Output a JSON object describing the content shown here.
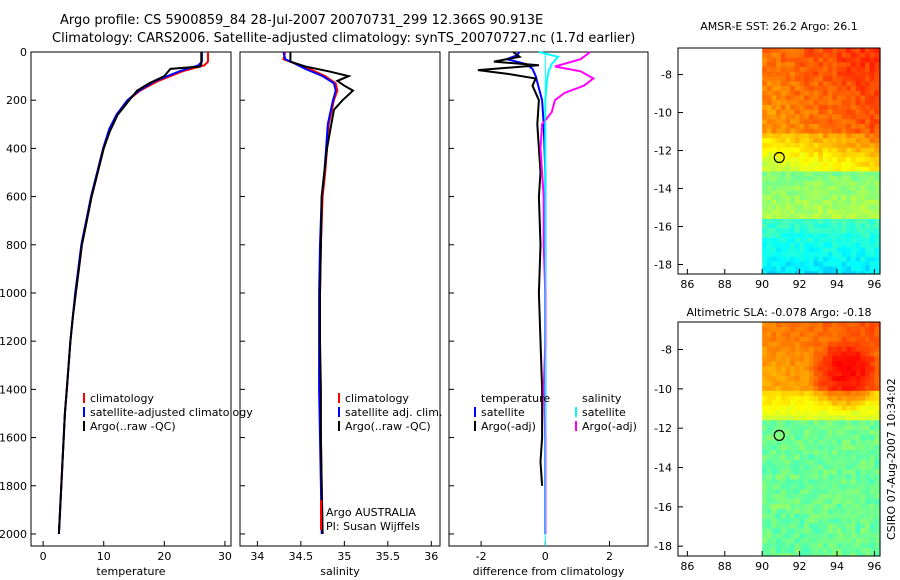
{
  "header": {
    "line1": "Argo profile: CS 5900859_84 28-Jul-2007 20070731_299 12.366S 90.913E",
    "line2": "Climatology: CARS2006. Satellite-adjusted climatology: synTS_20070727.nc (1.7d earlier)"
  },
  "side_label": "CSIRO 07-Aug-2007 10:34:02",
  "colors": {
    "red": "#ff0000",
    "blue": "#0000ff",
    "black": "#000000",
    "cyan": "#00ffff",
    "magenta": "#ff00ff"
  },
  "chart_data": [
    {
      "type": "line",
      "id": "temperature",
      "xlabel": "temperature",
      "ylabel": "",
      "xlim": [
        -2,
        31
      ],
      "ylim": [
        0,
        2050
      ],
      "xticks": [
        0,
        10,
        20,
        30
      ],
      "yticks": [
        0,
        200,
        400,
        600,
        800,
        1000,
        1200,
        1400,
        1600,
        1800,
        2000
      ],
      "legend": [
        "climatology",
        "satellite-adjusted climatology",
        "Argo(..raw -QC)"
      ],
      "series": [
        {
          "name": "climatology",
          "color": "red",
          "points": [
            [
              27.2,
              0
            ],
            [
              27.2,
              40
            ],
            [
              26.6,
              55
            ],
            [
              23,
              80
            ],
            [
              19,
              120
            ],
            [
              16,
              160
            ],
            [
              14,
              200
            ],
            [
              12.2,
              260
            ],
            [
              11,
              320
            ],
            [
              10,
              400
            ],
            [
              9,
              500
            ],
            [
              8,
              600
            ],
            [
              7.2,
              700
            ],
            [
              6.4,
              800
            ],
            [
              5.9,
              900
            ],
            [
              5.4,
              1000
            ],
            [
              4.9,
              1100
            ],
            [
              4.5,
              1200
            ],
            [
              4.2,
              1300
            ],
            [
              3.9,
              1400
            ],
            [
              3.6,
              1500
            ],
            [
              3.4,
              1600
            ],
            [
              3.2,
              1700
            ],
            [
              3,
              1800
            ],
            [
              2.8,
              1900
            ],
            [
              2.6,
              2000
            ]
          ]
        },
        {
          "name": "satellite-adjusted climatology",
          "color": "blue",
          "points": [
            [
              26.2,
              0
            ],
            [
              26.2,
              40
            ],
            [
              25.6,
              55
            ],
            [
              22.5,
              80
            ],
            [
              18.5,
              120
            ],
            [
              15.8,
              160
            ],
            [
              13.9,
              200
            ],
            [
              12.1,
              260
            ],
            [
              10.9,
              320
            ],
            [
              9.9,
              400
            ],
            [
              8.9,
              500
            ],
            [
              7.9,
              600
            ],
            [
              7.1,
              700
            ],
            [
              6.3,
              800
            ],
            [
              5.8,
              900
            ],
            [
              5.3,
              1000
            ],
            [
              4.9,
              1100
            ],
            [
              4.5,
              1200
            ],
            [
              4.2,
              1300
            ],
            [
              3.9,
              1400
            ],
            [
              3.6,
              1500
            ],
            [
              3.4,
              1600
            ],
            [
              3.2,
              1700
            ],
            [
              3,
              1800
            ],
            [
              2.8,
              1900
            ],
            [
              2.6,
              2000
            ]
          ]
        },
        {
          "name": "Argo(..raw -QC)",
          "color": "black",
          "points": [
            [
              26.1,
              0
            ],
            [
              26.1,
              50
            ],
            [
              25.9,
              60
            ],
            [
              21,
              70
            ],
            [
              20,
              100
            ],
            [
              17.5,
              130
            ],
            [
              15.5,
              160
            ],
            [
              14.2,
              200
            ],
            [
              12.3,
              260
            ],
            [
              11,
              330
            ],
            [
              10,
              400
            ],
            [
              9,
              500
            ],
            [
              8,
              600
            ],
            [
              7.2,
              700
            ],
            [
              6.4,
              800
            ],
            [
              5.9,
              900
            ],
            [
              5.4,
              1000
            ],
            [
              4.9,
              1100
            ],
            [
              4.5,
              1200
            ],
            [
              4.2,
              1300
            ],
            [
              3.9,
              1400
            ],
            [
              3.6,
              1500
            ],
            [
              3.4,
              1600
            ],
            [
              3.2,
              1700
            ],
            [
              3,
              1800
            ],
            [
              2.8,
              1900
            ],
            [
              2.6,
              2000
            ]
          ]
        }
      ]
    },
    {
      "type": "line",
      "id": "salinity",
      "xlabel": "salinity",
      "xlim": [
        33.8,
        36.1
      ],
      "ylim": [
        0,
        2050
      ],
      "xticks": [
        34,
        34.5,
        35,
        35.5,
        36
      ],
      "legend": [
        "climatology",
        "satellite adj. clim.",
        "Argo(..raw -QC)"
      ],
      "annotations": [
        "Argo AUSTRALIA",
        "PI: Susan Wijffels"
      ],
      "series": [
        {
          "name": "climatology",
          "color": "red",
          "points": [
            [
              34.32,
              0
            ],
            [
              34.3,
              30
            ],
            [
              34.45,
              50
            ],
            [
              34.6,
              70
            ],
            [
              34.78,
              100
            ],
            [
              34.9,
              130
            ],
            [
              34.92,
              160
            ],
            [
              34.88,
              200
            ],
            [
              34.85,
              250
            ],
            [
              34.82,
              300
            ],
            [
              34.8,
              400
            ],
            [
              34.78,
              500
            ],
            [
              34.75,
              600
            ],
            [
              34.73,
              800
            ],
            [
              34.72,
              1000
            ],
            [
              34.72,
              1200
            ],
            [
              34.72,
              1400
            ],
            [
              34.73,
              1600
            ],
            [
              34.74,
              1800
            ],
            [
              34.75,
              2000
            ]
          ]
        },
        {
          "name": "satellite adj. clim.",
          "color": "blue",
          "points": [
            [
              34.3,
              0
            ],
            [
              34.32,
              30
            ],
            [
              34.44,
              50
            ],
            [
              34.55,
              70
            ],
            [
              34.75,
              100
            ],
            [
              34.88,
              130
            ],
            [
              34.9,
              160
            ],
            [
              34.87,
              200
            ],
            [
              34.84,
              250
            ],
            [
              34.81,
              300
            ],
            [
              34.79,
              400
            ],
            [
              34.77,
              500
            ],
            [
              34.74,
              600
            ],
            [
              34.72,
              800
            ],
            [
              34.71,
              1000
            ],
            [
              34.71,
              1200
            ],
            [
              34.71,
              1400
            ],
            [
              34.72,
              1600
            ],
            [
              34.73,
              1800
            ],
            [
              34.74,
              2000
            ]
          ]
        },
        {
          "name": "Argo(..raw -QC)",
          "color": "black",
          "points": [
            [
              34.38,
              0
            ],
            [
              34.38,
              40
            ],
            [
              34.55,
              60
            ],
            [
              34.82,
              80
            ],
            [
              35.05,
              100
            ],
            [
              34.92,
              120
            ],
            [
              35.0,
              140
            ],
            [
              35.1,
              160
            ],
            [
              34.98,
              200
            ],
            [
              34.88,
              240
            ],
            [
              34.85,
              300
            ],
            [
              34.8,
              400
            ],
            [
              34.77,
              500
            ],
            [
              34.74,
              600
            ],
            [
              34.73,
              800
            ],
            [
              34.72,
              1000
            ],
            [
              34.72,
              1200
            ],
            [
              34.73,
              1400
            ],
            [
              34.73,
              1600
            ],
            [
              34.74,
              1800
            ],
            [
              34.75,
              2000
            ]
          ]
        }
      ]
    },
    {
      "type": "line",
      "id": "difference",
      "xlabel": "difference from climatology",
      "xlim": [
        -3,
        3.2
      ],
      "ylim": [
        0,
        2050
      ],
      "xticks": [
        -2,
        0,
        2
      ],
      "legend": [
        "temperature",
        "salinity",
        "satellite",
        "satellite",
        "Argo(-adj)",
        "Argo(-adj)"
      ],
      "series": [
        {
          "name": "temperature satellite",
          "color": "blue",
          "points": [
            [
              -0.8,
              0
            ],
            [
              -0.9,
              15
            ],
            [
              -1.2,
              30
            ],
            [
              -0.6,
              50
            ],
            [
              -0.4,
              70
            ],
            [
              -0.3,
              100
            ],
            [
              -0.2,
              150
            ],
            [
              -0.1,
              200
            ],
            [
              -0.05,
              300
            ],
            [
              0,
              500
            ],
            [
              0,
              1000
            ],
            [
              0,
              1500
            ],
            [
              0,
              2000
            ]
          ]
        },
        {
          "name": "temperature Argo(-adj)",
          "color": "black",
          "points": [
            [
              -1,
              0
            ],
            [
              -0.8,
              20
            ],
            [
              -1.6,
              40
            ],
            [
              -0.2,
              55
            ],
            [
              -2.1,
              75
            ],
            [
              -1.2,
              90
            ],
            [
              -0.3,
              110
            ],
            [
              -0.4,
              140
            ],
            [
              -0.2,
              200
            ],
            [
              -0.25,
              300
            ],
            [
              -0.2,
              400
            ],
            [
              -0.15,
              500
            ],
            [
              -0.2,
              600
            ],
            [
              -0.15,
              800
            ],
            [
              -0.2,
              1000
            ],
            [
              -0.15,
              1200
            ],
            [
              -0.1,
              1400
            ],
            [
              -0.1,
              1600
            ],
            [
              -0.15,
              1700
            ],
            [
              -0.1,
              1800
            ]
          ]
        },
        {
          "name": "salinity satellite",
          "color": "cyan",
          "points": [
            [
              -0.2,
              0
            ],
            [
              0.4,
              20
            ],
            [
              0.2,
              50
            ],
            [
              0.1,
              80
            ],
            [
              0.05,
              120
            ],
            [
              0,
              200
            ],
            [
              0,
              500
            ],
            [
              0,
              1000
            ],
            [
              0,
              1500
            ],
            [
              0,
              2000
            ]
          ]
        },
        {
          "name": "salinity Argo(-adj)",
          "color": "magenta",
          "points": [
            [
              1.4,
              0
            ],
            [
              1.1,
              30
            ],
            [
              0.3,
              60
            ],
            [
              1.1,
              80
            ],
            [
              1.5,
              110
            ],
            [
              1.2,
              140
            ],
            [
              0.6,
              170
            ],
            [
              0.3,
              200
            ],
            [
              0.2,
              250
            ],
            [
              -0.1,
              300
            ],
            [
              -0.15,
              400
            ],
            [
              -0.1,
              500
            ],
            [
              -0.05,
              600
            ],
            [
              -0.05,
              800
            ],
            [
              0,
              1000
            ],
            [
              0,
              1200
            ],
            [
              -0.05,
              1400
            ],
            [
              0,
              1600
            ],
            [
              0,
              1800
            ],
            [
              0,
              2000
            ]
          ]
        }
      ]
    },
    {
      "type": "heatmap",
      "id": "sst",
      "title": "AMSR-E SST: 26.2 Argo: 26.1",
      "xlim": [
        85.5,
        96.3
      ],
      "ylim": [
        -18.5,
        -6.6
      ],
      "xticks": [
        86,
        88,
        90,
        92,
        94,
        96
      ],
      "yticks": [
        -8,
        -10,
        -12,
        -14,
        -16,
        -18
      ],
      "data_xmin": 90,
      "argo_position": {
        "lon": 90.913,
        "lat": -12.366
      }
    },
    {
      "type": "heatmap",
      "id": "sla",
      "title": "Altimetric SLA: -0.078 Argo: -0.18",
      "xlim": [
        85.5,
        96.3
      ],
      "ylim": [
        -18.5,
        -6.6
      ],
      "xticks": [
        86,
        88,
        90,
        92,
        94,
        96
      ],
      "yticks": [
        -8,
        -10,
        -12,
        -14,
        -16,
        -18
      ],
      "data_xmin": 90,
      "argo_position": {
        "lon": 90.913,
        "lat": -12.366
      }
    }
  ]
}
